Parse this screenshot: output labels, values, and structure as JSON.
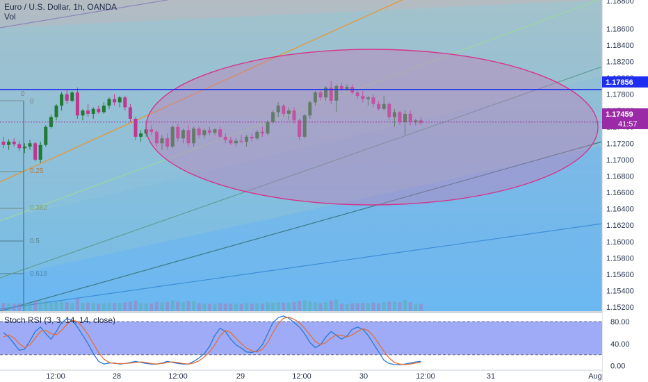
{
  "header": {
    "symbol_line": "Euro / U.S. Dollar, 1h, OANDA",
    "volume_label": "Vol"
  },
  "price_axis": {
    "ticks": [
      "1.18600",
      "1.18400",
      "1.18200",
      "1.18000",
      "1.17800",
      "1.17600",
      "1.17400",
      "1.17200",
      "1.17000",
      "1.16800",
      "1.16600",
      "1.16400",
      "1.16200",
      "1.16000",
      "1.15800",
      "1.15600",
      "1.15400",
      "1.15200"
    ],
    "top_partial_tick": "1.18800",
    "blue_line_label": "1.17856",
    "last_price_label": "1.17459",
    "countdown_label": "41:57",
    "blue_line_color": "#1e2ef0",
    "last_price_color": "#9b2aa6"
  },
  "time_axis": {
    "labels": [
      "12:00",
      "28",
      "12:00",
      "29",
      "12:00",
      "30",
      "12:00",
      "31",
      "Aug"
    ]
  },
  "fib_labels": [
    "0",
    "0",
    "0.25",
    "0.382",
    "0.5",
    "0.618"
  ],
  "indicator": {
    "title": "Stoch RSI (3, 3, 14, 14, close)",
    "ticks": [
      "80.00",
      "40.00",
      "0.00"
    ],
    "k_color": "#2a78d6",
    "d_color": "#e0703c",
    "band_color": "#8e9cf4"
  },
  "colors": {
    "up_candle": "#1f7a33",
    "down_candle": "#c2368f",
    "ellipse_stroke": "#d6338a",
    "background_top": "#b4bcc2",
    "background_bottom": "#6bb6f2"
  },
  "chart_data": [
    {
      "type": "candlestick",
      "title": "Euro / U.S. Dollar, 1h, OANDA",
      "ylim": [
        1.1515,
        1.1895
      ],
      "x_axis_labels": [
        "12:00",
        "28",
        "12:00",
        "29",
        "12:00",
        "30",
        "12:00",
        "31",
        "Aug"
      ],
      "ohlc": [
        [
          1.1722,
          1.1728,
          1.1714,
          1.1718
        ],
        [
          1.1718,
          1.1725,
          1.1712,
          1.1722
        ],
        [
          1.1722,
          1.1726,
          1.1716,
          1.1719
        ],
        [
          1.1719,
          1.1723,
          1.171,
          1.1714
        ],
        [
          1.1714,
          1.172,
          1.1708,
          1.1716
        ],
        [
          1.1716,
          1.1724,
          1.1712,
          1.172
        ],
        [
          1.172,
          1.1722,
          1.1698,
          1.17
        ],
        [
          1.17,
          1.1722,
          1.1696,
          1.1718
        ],
        [
          1.1718,
          1.1742,
          1.1716,
          1.174
        ],
        [
          1.174,
          1.1755,
          1.1738,
          1.1752
        ],
        [
          1.1752,
          1.1768,
          1.1748,
          1.1766
        ],
        [
          1.1766,
          1.1783,
          1.176,
          1.178
        ],
        [
          1.178,
          1.1786,
          1.1768,
          1.1772
        ],
        [
          1.1772,
          1.1784,
          1.177,
          1.1782
        ],
        [
          1.1782,
          1.1788,
          1.175,
          1.1754
        ],
        [
          1.1754,
          1.1762,
          1.1748,
          1.176
        ],
        [
          1.176,
          1.1768,
          1.1752,
          1.1756
        ],
        [
          1.1756,
          1.1764,
          1.175,
          1.1762
        ],
        [
          1.1762,
          1.1766,
          1.1756,
          1.1758
        ],
        [
          1.1758,
          1.177,
          1.1756,
          1.1766
        ],
        [
          1.1766,
          1.1776,
          1.1762,
          1.1774
        ],
        [
          1.1774,
          1.178,
          1.1766,
          1.177
        ],
        [
          1.177,
          1.1778,
          1.1764,
          1.1776
        ],
        [
          1.1776,
          1.1778,
          1.176,
          1.1764
        ],
        [
          1.1764,
          1.1768,
          1.1746,
          1.175
        ],
        [
          1.175,
          1.1752,
          1.1724,
          1.1728
        ],
        [
          1.1728,
          1.1736,
          1.1722,
          1.1732
        ],
        [
          1.1732,
          1.174,
          1.1728,
          1.1737
        ],
        [
          1.1737,
          1.1742,
          1.173,
          1.1734
        ],
        [
          1.1734,
          1.1736,
          1.1716,
          1.172
        ],
        [
          1.172,
          1.173,
          1.1712,
          1.1726
        ],
        [
          1.1726,
          1.1732,
          1.1712,
          1.1716
        ],
        [
          1.1716,
          1.1742,
          1.1714,
          1.174
        ],
        [
          1.174,
          1.1744,
          1.1722,
          1.1726
        ],
        [
          1.1726,
          1.1738,
          1.172,
          1.1736
        ],
        [
          1.1736,
          1.1742,
          1.1716,
          1.172
        ],
        [
          1.172,
          1.174,
          1.1716,
          1.1738
        ],
        [
          1.1738,
          1.174,
          1.1726,
          1.173
        ],
        [
          1.173,
          1.1738,
          1.1726,
          1.1736
        ],
        [
          1.1736,
          1.174,
          1.173,
          1.1733
        ],
        [
          1.1733,
          1.1738,
          1.173,
          1.1737
        ],
        [
          1.1737,
          1.174,
          1.1726,
          1.1728
        ],
        [
          1.1728,
          1.1732,
          1.172,
          1.1724
        ],
        [
          1.1724,
          1.1728,
          1.1718,
          1.172
        ],
        [
          1.172,
          1.1726,
          1.1716,
          1.1723
        ],
        [
          1.1723,
          1.173,
          1.172,
          1.1722
        ],
        [
          1.1722,
          1.173,
          1.1716,
          1.1728
        ],
        [
          1.1728,
          1.1732,
          1.1722,
          1.1726
        ],
        [
          1.1726,
          1.1736,
          1.1724,
          1.1734
        ],
        [
          1.1734,
          1.174,
          1.1728,
          1.1732
        ],
        [
          1.1732,
          1.1748,
          1.173,
          1.1746
        ],
        [
          1.1746,
          1.176,
          1.1744,
          1.1758
        ],
        [
          1.1758,
          1.177,
          1.1752,
          1.1766
        ],
        [
          1.1766,
          1.1768,
          1.1752,
          1.1756
        ],
        [
          1.1756,
          1.1764,
          1.1748,
          1.176
        ],
        [
          1.176,
          1.1764,
          1.1744,
          1.1748
        ],
        [
          1.1748,
          1.175,
          1.1724,
          1.1728
        ],
        [
          1.1728,
          1.1756,
          1.1726,
          1.1754
        ],
        [
          1.1754,
          1.1772,
          1.175,
          1.177
        ],
        [
          1.177,
          1.1784,
          1.1766,
          1.1782
        ],
        [
          1.1782,
          1.1786,
          1.1772,
          1.1776
        ],
        [
          1.1776,
          1.179,
          1.1772,
          1.1788
        ],
        [
          1.1788,
          1.1796,
          1.1768,
          1.1772
        ],
        [
          1.1772,
          1.1792,
          1.1758,
          1.179
        ],
        [
          1.179,
          1.1794,
          1.1784,
          1.1786
        ],
        [
          1.1786,
          1.1792,
          1.1784,
          1.1789
        ],
        [
          1.1789,
          1.1792,
          1.178,
          1.1782
        ],
        [
          1.1782,
          1.1786,
          1.1774,
          1.1778
        ],
        [
          1.1778,
          1.1784,
          1.177,
          1.1774
        ],
        [
          1.1774,
          1.1778,
          1.1766,
          1.1776
        ],
        [
          1.1776,
          1.178,
          1.1764,
          1.1768
        ],
        [
          1.1768,
          1.1772,
          1.176,
          1.1762
        ],
        [
          1.1762,
          1.1778,
          1.176,
          1.1768
        ],
        [
          1.1768,
          1.177,
          1.1748,
          1.1752
        ],
        [
          1.1752,
          1.1762,
          1.174,
          1.1758
        ],
        [
          1.1758,
          1.176,
          1.1742,
          1.1746
        ],
        [
          1.1746,
          1.176,
          1.173,
          1.1756
        ],
        [
          1.1756,
          1.176,
          1.1742,
          1.1746
        ],
        [
          1.1746,
          1.175,
          1.1742,
          1.1748
        ],
        [
          1.1748,
          1.1752,
          1.1742,
          1.1745
        ]
      ]
    },
    {
      "type": "line",
      "title": "Stoch RSI (3, 3, 14, 14, close)",
      "ylim": [
        -8,
        95
      ],
      "yticks": [
        80,
        40,
        0
      ],
      "band": [
        20,
        80
      ],
      "series": [
        {
          "role": "k",
          "values": [
            60,
            52,
            40,
            28,
            30,
            45,
            62,
            70,
            58,
            48,
            62,
            78,
            85,
            82,
            70,
            55,
            40,
            22,
            8,
            3,
            5,
            5,
            3,
            4,
            6,
            8,
            6,
            4,
            3,
            3,
            5,
            8,
            6,
            4,
            3,
            3,
            8,
            14,
            22,
            35,
            55,
            68,
            62,
            48,
            38,
            32,
            25,
            24,
            27,
            38,
            58,
            78,
            87,
            90,
            86,
            78,
            70,
            58,
            42,
            33,
            38,
            52,
            62,
            55,
            48,
            54,
            66,
            70,
            66,
            55,
            40,
            25,
            10,
            4,
            2,
            2,
            3,
            5,
            7,
            8
          ]
        },
        {
          "role": "d",
          "values": [
            52,
            56,
            50,
            40,
            33,
            38,
            50,
            62,
            64,
            58,
            56,
            64,
            75,
            82,
            80,
            70,
            56,
            40,
            24,
            12,
            6,
            4,
            4,
            4,
            5,
            6,
            7,
            6,
            4,
            3,
            4,
            6,
            7,
            6,
            4,
            3,
            5,
            9,
            16,
            25,
            38,
            54,
            64,
            60,
            50,
            40,
            32,
            27,
            25,
            30,
            42,
            60,
            76,
            86,
            88,
            84,
            78,
            68,
            56,
            44,
            38,
            42,
            50,
            56,
            55,
            52,
            56,
            62,
            67,
            64,
            54,
            40,
            26,
            14,
            6,
            3,
            2,
            3,
            5,
            6
          ]
        }
      ]
    }
  ]
}
